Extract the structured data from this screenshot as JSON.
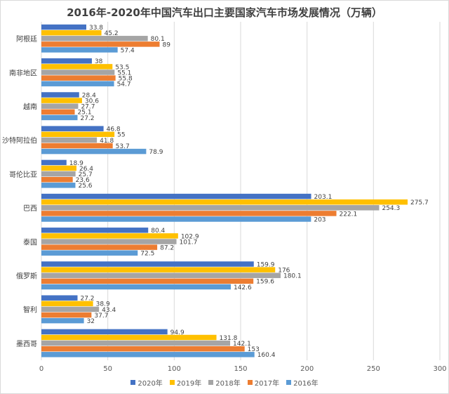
{
  "chart_data": {
    "type": "bar",
    "orientation": "horizontal",
    "title": "2016年-2020年中国汽车出口主要国家汽车市场发展情况（万辆）",
    "categories": [
      "阿根廷",
      "南非地区",
      "越南",
      "沙特阿拉伯",
      "哥伦比亚",
      "巴西",
      "泰国",
      "俄罗斯",
      "智利",
      "墨西哥"
    ],
    "series": [
      {
        "name": "2020年",
        "color": "#4472c4",
        "values": [
          33.8,
          38,
          28.4,
          46.8,
          18.9,
          203.1,
          80.4,
          159.9,
          27.2,
          94.9
        ]
      },
      {
        "name": "2019年",
        "color": "#ffc000",
        "values": [
          45.2,
          53.5,
          30.6,
          55,
          26.4,
          275.7,
          102.9,
          176,
          38.9,
          131.8
        ]
      },
      {
        "name": "2018年",
        "color": "#a5a5a5",
        "values": [
          80.1,
          55.1,
          27.7,
          41.8,
          25.7,
          254.3,
          101.7,
          180.1,
          43.4,
          142.1
        ]
      },
      {
        "name": "2017年",
        "color": "#ed7d31",
        "values": [
          89,
          55.8,
          25.1,
          53.7,
          23.6,
          222.1,
          87.2,
          159.6,
          37.7,
          153
        ]
      },
      {
        "name": "2016年",
        "color": "#5b9bd5",
        "values": [
          57.4,
          54.7,
          27.2,
          78.9,
          25.6,
          203,
          72.5,
          142.6,
          32,
          160.4
        ]
      }
    ],
    "xlim": [
      0,
      300
    ],
    "xticks": [
      0,
      50,
      100,
      150,
      200,
      250,
      300
    ],
    "grid": true,
    "legend": "bottom"
  }
}
